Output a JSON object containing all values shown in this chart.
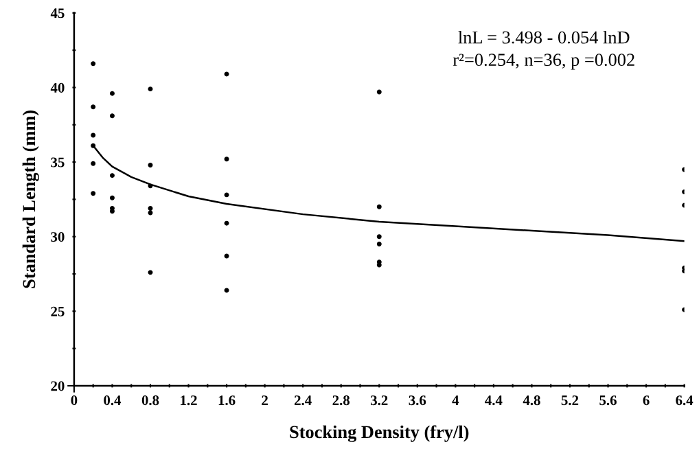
{
  "chart_data": {
    "type": "scatter",
    "xlabel": "Stocking Density (fry/l)",
    "ylabel": "Standard Length (mm)",
    "annotations": [
      "lnL = 3.498 - 0.054 lnD",
      "r²=0.254, n=36, p =0.002"
    ],
    "series": [
      {
        "color": "#000000",
        "marker": "circle",
        "x": [
          0.2,
          0.2,
          0.2,
          0.2,
          0.2,
          0.2,
          0.4,
          0.4,
          0.4,
          0.4,
          0.4,
          0.4,
          0.8,
          0.8,
          0.8,
          0.8,
          0.8,
          0.8,
          1.6,
          1.6,
          1.6,
          1.6,
          1.6,
          1.6,
          3.2,
          3.2,
          3.2,
          3.2,
          3.2,
          3.2,
          6.4,
          6.4,
          6.4,
          6.4,
          6.4,
          6.4
        ],
        "values": [
          41.6,
          38.7,
          36.8,
          36.1,
          34.9,
          32.9,
          39.6,
          38.1,
          34.1,
          32.6,
          31.9,
          31.7,
          39.9,
          34.8,
          33.4,
          31.9,
          31.6,
          27.6,
          40.9,
          35.2,
          32.8,
          30.9,
          28.7,
          26.4,
          39.7,
          32.0,
          30.0,
          29.5,
          28.3,
          28.1,
          34.5,
          33.0,
          32.1,
          27.9,
          27.7,
          25.1
        ]
      },
      {
        "type": "line",
        "color": "#000000",
        "marker": "none",
        "line_style": "solid",
        "x": [
          0.2,
          0.3,
          0.4,
          0.6,
          0.8,
          1.2,
          1.6,
          2.4,
          3.2,
          4.0,
          4.8,
          5.6,
          6.4
        ],
        "values": [
          36.1,
          35.3,
          34.7,
          34.0,
          33.5,
          32.7,
          32.2,
          31.5,
          31.0,
          30.7,
          30.4,
          30.1,
          29.7
        ]
      }
    ],
    "xlim": [
      0,
      6.4
    ],
    "ylim": [
      20,
      45
    ],
    "xticks": [
      0,
      {
        "value": 0.2,
        "label": null
      },
      0.4,
      {
        "value": 0.6,
        "label": null
      },
      0.8,
      {
        "value": 1.0,
        "label": null
      },
      1.2,
      {
        "value": 1.4,
        "label": null
      },
      1.6,
      {
        "value": 1.8,
        "label": null
      },
      2,
      {
        "value": 2.2,
        "label": null
      },
      2.4,
      {
        "value": 2.6,
        "label": null
      },
      2.8,
      {
        "value": 3.0,
        "label": null
      },
      3.2,
      {
        "value": 3.4,
        "label": null
      },
      3.6,
      {
        "value": 3.8,
        "label": null
      },
      4,
      {
        "value": 4.2,
        "label": null
      },
      4.4,
      {
        "value": 4.6,
        "label": null
      },
      4.8,
      {
        "value": 5.0,
        "label": null
      },
      5.2,
      {
        "value": 5.4,
        "label": null
      },
      5.6,
      {
        "value": 5.8,
        "label": null
      },
      6,
      {
        "value": 6.2,
        "label": null
      },
      6.4
    ],
    "yticks": [
      20,
      {
        "value": 22.5,
        "label": null
      },
      25,
      {
        "value": 27.5,
        "label": null
      },
      30,
      {
        "value": 32.5,
        "label": null
      },
      35,
      {
        "value": 37.5,
        "label": null
      },
      40,
      {
        "value": 42.5,
        "label": null
      },
      45
    ],
    "grid": false,
    "legend": false
  }
}
